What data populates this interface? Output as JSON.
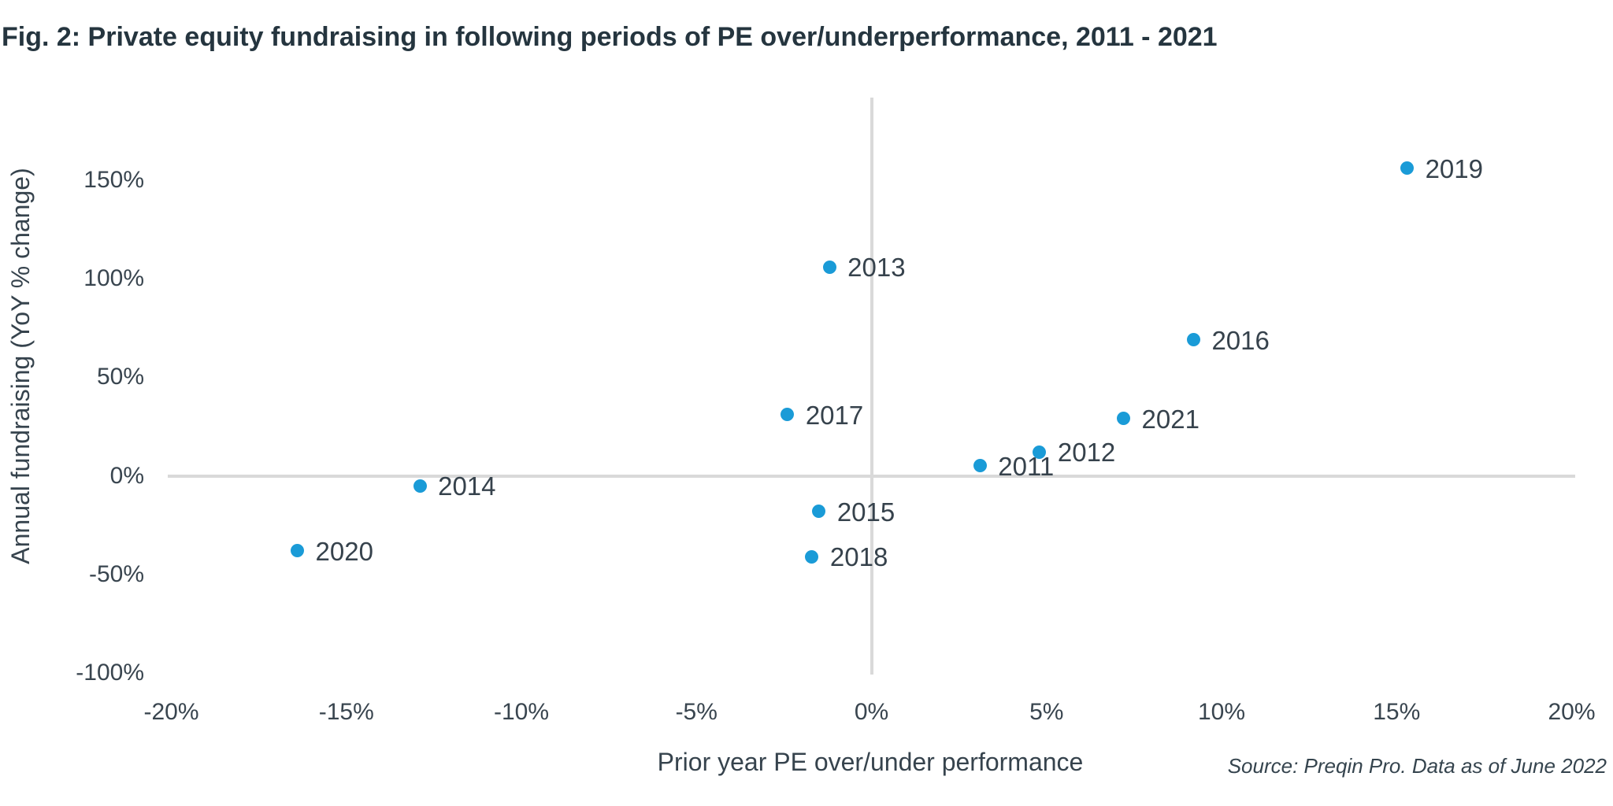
{
  "title": "Fig. 2: Private equity fundraising in following periods of PE over/underperformance, 2011 - 2021",
  "source_note": "Source: Preqin Pro. Data as of June 2022",
  "chart_data": {
    "type": "scatter",
    "title": "Fig. 2: Private equity fundraising in following periods of PE over/underperformance, 2011 - 2021",
    "xlabel": "Prior year PE over/under performance",
    "ylabel": "Annual fundraising (YoY % change)",
    "xlim": [
      -20.1,
      20.1
    ],
    "ylim": [
      -101,
      192
    ],
    "grid": false,
    "legend_position": "none",
    "axes_style": "zero-lines only, light gray",
    "x_ticks": [
      {
        "value": -20,
        "label": "-20%"
      },
      {
        "value": -15,
        "label": "-15%"
      },
      {
        "value": -10,
        "label": "-10%"
      },
      {
        "value": -5,
        "label": "-5%"
      },
      {
        "value": 0,
        "label": "0%"
      },
      {
        "value": 5,
        "label": "5%"
      },
      {
        "value": 10,
        "label": "10%"
      },
      {
        "value": 15,
        "label": "15%"
      },
      {
        "value": 20,
        "label": "20%"
      }
    ],
    "y_ticks": [
      {
        "value": 150,
        "label": "150%"
      },
      {
        "value": 100,
        "label": "100%"
      },
      {
        "value": 50,
        "label": "50%"
      },
      {
        "value": 0,
        "label": "0%"
      },
      {
        "value": -50,
        "label": "-50%"
      },
      {
        "value": -100,
        "label": "-100%"
      }
    ],
    "points": [
      {
        "label": "2011",
        "x": 3.1,
        "y": 5
      },
      {
        "label": "2012",
        "x": 4.8,
        "y": 12
      },
      {
        "label": "2013",
        "x": -1.2,
        "y": 106
      },
      {
        "label": "2014",
        "x": -12.9,
        "y": -5
      },
      {
        "label": "2015",
        "x": -1.5,
        "y": -18
      },
      {
        "label": "2016",
        "x": 9.2,
        "y": 69
      },
      {
        "label": "2017",
        "x": -2.4,
        "y": 31
      },
      {
        "label": "2018",
        "x": -1.7,
        "y": -41
      },
      {
        "label": "2019",
        "x": 15.3,
        "y": 156
      },
      {
        "label": "2020",
        "x": -16.4,
        "y": -38
      },
      {
        "label": "2021",
        "x": 7.2,
        "y": 29
      }
    ],
    "colors": {
      "point": "#1a9bd7",
      "axis_line": "#d9d9d9",
      "tick_text": "#39454f",
      "title_text": "#25353f"
    }
  }
}
